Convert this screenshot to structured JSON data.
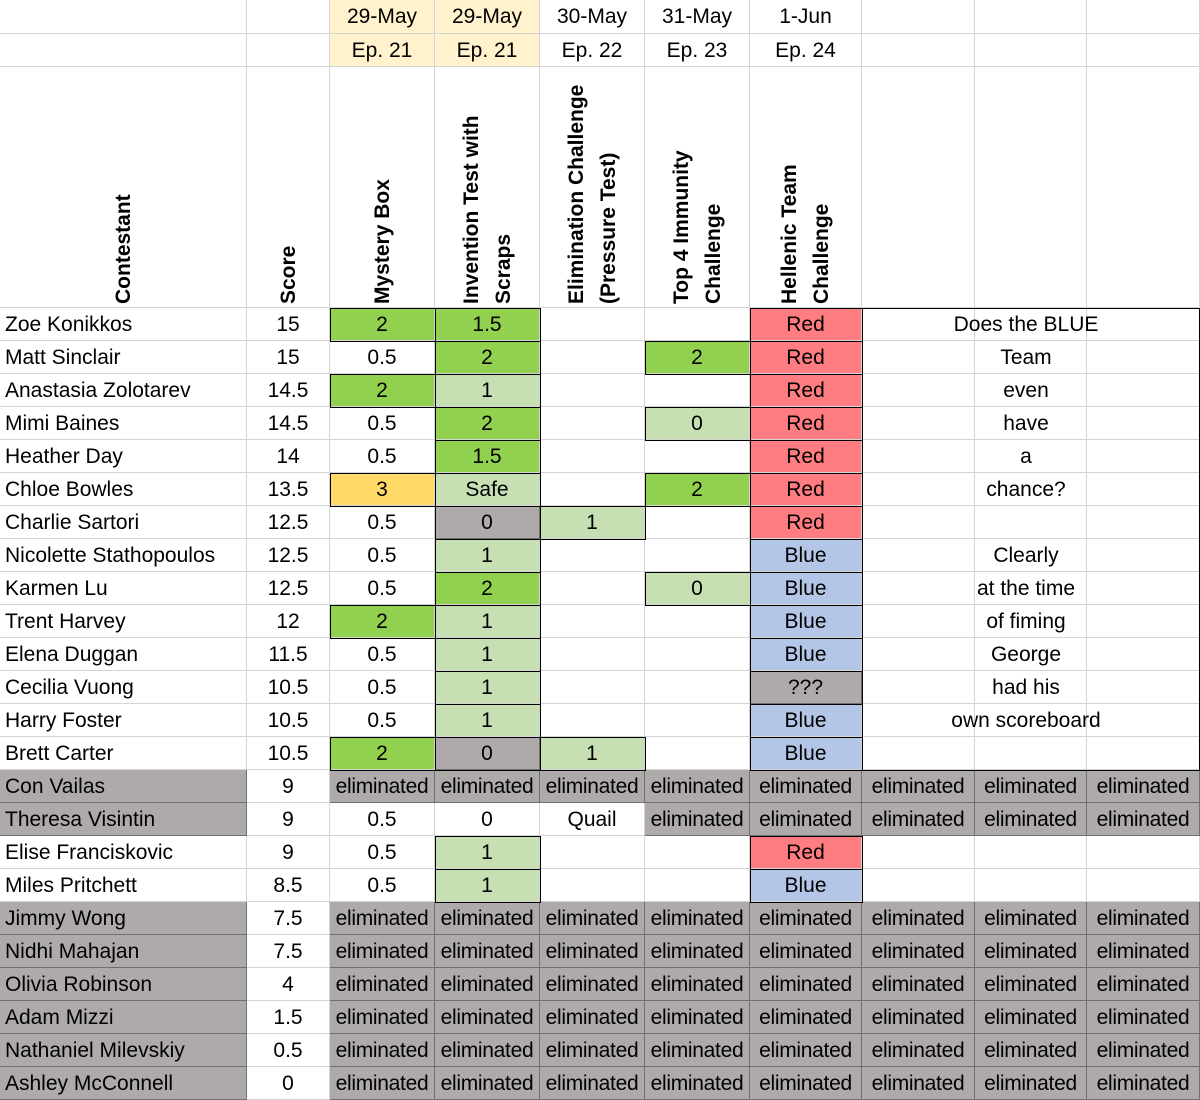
{
  "colors": {
    "green": "#92d050",
    "lightgreen": "#c6e0b4",
    "orange": "#ffd966",
    "grey": "#aeaaaa",
    "red": "#ff7c80",
    "blue": "#b4c6e7",
    "header_date": "#fff2cc",
    "white": "#ffffff"
  },
  "header": {
    "dates": [
      "29-May",
      "29-May",
      "30-May",
      "31-May",
      "1-Jun"
    ],
    "episodes": [
      "Ep.  21",
      "Ep.  21",
      "Ep.  22",
      "Ep.  23",
      "Ep. 24"
    ],
    "contestant_label": "Contestant",
    "score_label": "Score",
    "challenges": [
      [
        "Mystery Box"
      ],
      [
        "Invention Test with",
        "Scraps"
      ],
      [
        "Elimination Challenge",
        "(Pressure Test)"
      ],
      [
        "Top 4 Immunity",
        "Challenge"
      ],
      [
        "Hellenic Team",
        "Challenge"
      ]
    ]
  },
  "rows": [
    {
      "name": "Zoe Konikkos",
      "score": "15",
      "eliminated": false,
      "cells": [
        [
          "2",
          "green"
        ],
        [
          "1.5",
          "green"
        ],
        [
          "",
          ""
        ],
        [
          "",
          ""
        ],
        [
          "Red",
          "red"
        ],
        [
          "",
          ""
        ],
        [
          "",
          ""
        ],
        [
          "",
          ""
        ]
      ]
    },
    {
      "name": "Matt Sinclair",
      "score": "15",
      "eliminated": false,
      "cells": [
        [
          "0.5",
          ""
        ],
        [
          "2",
          "green"
        ],
        [
          "",
          ""
        ],
        [
          "2",
          "green"
        ],
        [
          "Red",
          "red"
        ],
        [
          "",
          ""
        ],
        [
          "",
          ""
        ],
        [
          "",
          ""
        ]
      ]
    },
    {
      "name": "Anastasia Zolotarev",
      "score": "14.5",
      "eliminated": false,
      "cells": [
        [
          "2",
          "green"
        ],
        [
          "1",
          "lightgreen"
        ],
        [
          "",
          ""
        ],
        [
          "",
          ""
        ],
        [
          "Red",
          "red"
        ],
        [
          "",
          ""
        ],
        [
          "",
          ""
        ],
        [
          "",
          ""
        ]
      ]
    },
    {
      "name": "Mimi Baines",
      "score": "14.5",
      "eliminated": false,
      "cells": [
        [
          "0.5",
          ""
        ],
        [
          "2",
          "green"
        ],
        [
          "",
          ""
        ],
        [
          "0",
          "lightgreen"
        ],
        [
          "Red",
          "red"
        ],
        [
          "",
          ""
        ],
        [
          "",
          ""
        ],
        [
          "",
          ""
        ]
      ]
    },
    {
      "name": "Heather Day",
      "score": "14",
      "eliminated": false,
      "cells": [
        [
          "0.5",
          ""
        ],
        [
          "1.5",
          "green"
        ],
        [
          "",
          ""
        ],
        [
          "",
          ""
        ],
        [
          "Red",
          "red"
        ],
        [
          "",
          ""
        ],
        [
          "",
          ""
        ],
        [
          "",
          ""
        ]
      ]
    },
    {
      "name": "Chloe Bowles",
      "score": "13.5",
      "eliminated": false,
      "cells": [
        [
          "3",
          "orange"
        ],
        [
          "Safe",
          "lightgreen"
        ],
        [
          "",
          ""
        ],
        [
          "2",
          "green"
        ],
        [
          "Red",
          "red"
        ],
        [
          "",
          ""
        ],
        [
          "",
          ""
        ],
        [
          "",
          ""
        ]
      ]
    },
    {
      "name": "Charlie Sartori",
      "score": "12.5",
      "eliminated": false,
      "cells": [
        [
          "0.5",
          ""
        ],
        [
          "0",
          "grey"
        ],
        [
          "1",
          "lightgreen"
        ],
        [
          "",
          ""
        ],
        [
          "Red",
          "red"
        ],
        [
          "",
          ""
        ],
        [
          "",
          ""
        ],
        [
          "",
          ""
        ]
      ]
    },
    {
      "name": "Nicolette Stathopoulos",
      "score": "12.5",
      "eliminated": false,
      "cells": [
        [
          "0.5",
          ""
        ],
        [
          "1",
          "lightgreen"
        ],
        [
          "",
          ""
        ],
        [
          "",
          ""
        ],
        [
          "Blue",
          "blue"
        ],
        [
          "",
          ""
        ],
        [
          "",
          ""
        ],
        [
          "",
          ""
        ]
      ]
    },
    {
      "name": "Karmen Lu",
      "score": "12.5",
      "eliminated": false,
      "cells": [
        [
          "0.5",
          ""
        ],
        [
          "2",
          "green"
        ],
        [
          "",
          ""
        ],
        [
          "0",
          "lightgreen"
        ],
        [
          "Blue",
          "blue"
        ],
        [
          "",
          ""
        ],
        [
          "",
          ""
        ],
        [
          "",
          ""
        ]
      ]
    },
    {
      "name": "Trent Harvey",
      "score": "12",
      "eliminated": false,
      "cells": [
        [
          "2",
          "green"
        ],
        [
          "1",
          "lightgreen"
        ],
        [
          "",
          ""
        ],
        [
          "",
          ""
        ],
        [
          "Blue",
          "blue"
        ],
        [
          "",
          ""
        ],
        [
          "",
          ""
        ],
        [
          "",
          ""
        ]
      ]
    },
    {
      "name": "Elena Duggan",
      "score": "11.5",
      "eliminated": false,
      "cells": [
        [
          "0.5",
          ""
        ],
        [
          "1",
          "lightgreen"
        ],
        [
          "",
          ""
        ],
        [
          "",
          ""
        ],
        [
          "Blue",
          "blue"
        ],
        [
          "",
          ""
        ],
        [
          "",
          ""
        ],
        [
          "",
          ""
        ]
      ]
    },
    {
      "name": "Cecilia Vuong",
      "score": "10.5",
      "eliminated": false,
      "cells": [
        [
          "0.5",
          ""
        ],
        [
          "1",
          "lightgreen"
        ],
        [
          "",
          ""
        ],
        [
          "",
          ""
        ],
        [
          "???",
          "grey"
        ],
        [
          "",
          ""
        ],
        [
          "",
          ""
        ],
        [
          "",
          ""
        ]
      ]
    },
    {
      "name": "Harry Foster",
      "score": "10.5",
      "eliminated": false,
      "cells": [
        [
          "0.5",
          ""
        ],
        [
          "1",
          "lightgreen"
        ],
        [
          "",
          ""
        ],
        [
          "",
          ""
        ],
        [
          "Blue",
          "blue"
        ],
        [
          "",
          ""
        ],
        [
          "",
          ""
        ],
        [
          "",
          ""
        ]
      ]
    },
    {
      "name": "Brett Carter",
      "score": "10.5",
      "eliminated": false,
      "cells": [
        [
          "2",
          "green"
        ],
        [
          "0",
          "grey"
        ],
        [
          "1",
          "lightgreen"
        ],
        [
          "",
          ""
        ],
        [
          "Blue",
          "blue"
        ],
        [
          "",
          ""
        ],
        [
          "",
          ""
        ],
        [
          "",
          ""
        ]
      ]
    },
    {
      "name": "Con Vailas",
      "score": "9",
      "eliminated": true,
      "cells": [
        [
          "eliminated",
          "grey"
        ],
        [
          "eliminated",
          "grey"
        ],
        [
          "eliminated",
          "grey"
        ],
        [
          "eliminated",
          "grey"
        ],
        [
          "eliminated",
          "grey"
        ],
        [
          "eliminated",
          "grey"
        ],
        [
          "eliminated",
          "grey"
        ],
        [
          "eliminated",
          "grey"
        ]
      ]
    },
    {
      "name": "Theresa Visintin",
      "score": "9",
      "eliminated": true,
      "cells": [
        [
          "0.5",
          ""
        ],
        [
          "0",
          ""
        ],
        [
          "Quail",
          ""
        ],
        [
          "eliminated",
          "grey"
        ],
        [
          "eliminated",
          "grey"
        ],
        [
          "eliminated",
          "grey"
        ],
        [
          "eliminated",
          "grey"
        ],
        [
          "eliminated",
          "grey"
        ]
      ]
    },
    {
      "name": "Elise Franciskovic",
      "score": "9",
      "eliminated": false,
      "cells": [
        [
          "0.5",
          ""
        ],
        [
          "1",
          "lightgreen"
        ],
        [
          "",
          ""
        ],
        [
          "",
          ""
        ],
        [
          "Red",
          "red"
        ],
        [
          "",
          ""
        ],
        [
          "",
          ""
        ],
        [
          "",
          ""
        ]
      ]
    },
    {
      "name": "Miles Pritchett",
      "score": "8.5",
      "eliminated": false,
      "cells": [
        [
          "0.5",
          ""
        ],
        [
          "1",
          "lightgreen"
        ],
        [
          "",
          ""
        ],
        [
          "",
          ""
        ],
        [
          "Blue",
          "blue"
        ],
        [
          "",
          ""
        ],
        [
          "",
          ""
        ],
        [
          "",
          ""
        ]
      ]
    },
    {
      "name": "Jimmy Wong",
      "score": "7.5",
      "eliminated": true,
      "cells": [
        [
          "eliminated",
          "grey"
        ],
        [
          "eliminated",
          "grey"
        ],
        [
          "eliminated",
          "grey"
        ],
        [
          "eliminated",
          "grey"
        ],
        [
          "eliminated",
          "grey"
        ],
        [
          "eliminated",
          "grey"
        ],
        [
          "eliminated",
          "grey"
        ],
        [
          "eliminated",
          "grey"
        ]
      ]
    },
    {
      "name": "Nidhi Mahajan",
      "score": "7.5",
      "eliminated": true,
      "cells": [
        [
          "eliminated",
          "grey"
        ],
        [
          "eliminated",
          "grey"
        ],
        [
          "eliminated",
          "grey"
        ],
        [
          "eliminated",
          "grey"
        ],
        [
          "eliminated",
          "grey"
        ],
        [
          "eliminated",
          "grey"
        ],
        [
          "eliminated",
          "grey"
        ],
        [
          "eliminated",
          "grey"
        ]
      ]
    },
    {
      "name": "Olivia Robinson",
      "score": "4",
      "eliminated": true,
      "cells": [
        [
          "eliminated",
          "grey"
        ],
        [
          "eliminated",
          "grey"
        ],
        [
          "eliminated",
          "grey"
        ],
        [
          "eliminated",
          "grey"
        ],
        [
          "eliminated",
          "grey"
        ],
        [
          "eliminated",
          "grey"
        ],
        [
          "eliminated",
          "grey"
        ],
        [
          "eliminated",
          "grey"
        ]
      ]
    },
    {
      "name": "Adam Mizzi",
      "score": "1.5",
      "eliminated": true,
      "cells": [
        [
          "eliminated",
          "grey"
        ],
        [
          "eliminated",
          "grey"
        ],
        [
          "eliminated",
          "grey"
        ],
        [
          "eliminated",
          "grey"
        ],
        [
          "eliminated",
          "grey"
        ],
        [
          "eliminated",
          "grey"
        ],
        [
          "eliminated",
          "grey"
        ],
        [
          "eliminated",
          "grey"
        ]
      ]
    },
    {
      "name": "Nathaniel Milevskiy",
      "score": "0.5",
      "eliminated": true,
      "cells": [
        [
          "eliminated",
          "grey"
        ],
        [
          "eliminated",
          "grey"
        ],
        [
          "eliminated",
          "grey"
        ],
        [
          "eliminated",
          "grey"
        ],
        [
          "eliminated",
          "grey"
        ],
        [
          "eliminated",
          "grey"
        ],
        [
          "eliminated",
          "grey"
        ],
        [
          "eliminated",
          "grey"
        ]
      ]
    },
    {
      "name": "Ashley McConnell",
      "score": "0",
      "eliminated": true,
      "cells": [
        [
          "eliminated",
          "grey"
        ],
        [
          "eliminated",
          "grey"
        ],
        [
          "eliminated",
          "grey"
        ],
        [
          "eliminated",
          "grey"
        ],
        [
          "eliminated",
          "grey"
        ],
        [
          "eliminated",
          "grey"
        ],
        [
          "eliminated",
          "grey"
        ],
        [
          "eliminated",
          "grey"
        ]
      ]
    }
  ],
  "note_lines": [
    "Does the BLUE",
    "Team",
    "even",
    "have",
    "a",
    "chance?",
    "",
    "Clearly",
    "at the time",
    "of fiming",
    "George",
    "had his",
    "own scoreboard"
  ]
}
